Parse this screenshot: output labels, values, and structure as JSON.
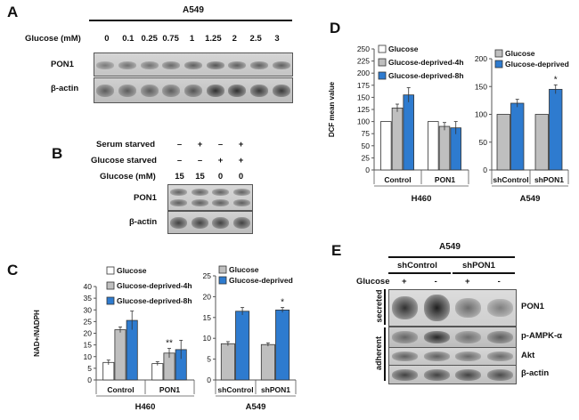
{
  "panels": {
    "a": "A",
    "b": "B",
    "c": "C",
    "d": "D",
    "e": "E"
  },
  "panel_a": {
    "cell_line": "A549",
    "glucose_label": "Glucose (mM)",
    "glucose_values": [
      "0",
      "0.1",
      "0.25",
      "0.75",
      "1",
      "1.25",
      "2",
      "2.5",
      "3"
    ],
    "rows": [
      "PON1",
      "β-actin"
    ]
  },
  "panel_b": {
    "conditions": [
      {
        "label": "Serum starved",
        "marks": [
          "–",
          "+",
          "–",
          "+"
        ]
      },
      {
        "label": "Glucose starved",
        "marks": [
          "–",
          "–",
          "+",
          "+"
        ]
      }
    ],
    "glucose_label": "Glucose (mM)",
    "glucose_values": [
      "15",
      "15",
      "0",
      "0"
    ],
    "rows": [
      "PON1",
      "β-actin"
    ]
  },
  "panel_e": {
    "cell_line": "A549",
    "groups": [
      "shControl",
      "shPON1"
    ],
    "glucose_label": "Glucose",
    "glucose_marks": [
      "+",
      "-",
      "+",
      "-"
    ],
    "side_labels": [
      "secreted",
      "adherent"
    ],
    "rows": [
      "PON1",
      "p-AMPK-α",
      "Akt",
      "β-actin"
    ]
  },
  "chart_data": [
    {
      "id": "C-H460",
      "type": "bar",
      "ylabel": "NAD+/NADPH",
      "ylim": [
        0,
        40
      ],
      "yticks": [
        0,
        5,
        10,
        15,
        20,
        25,
        30,
        35,
        40
      ],
      "categories": [
        "Control",
        "PON1"
      ],
      "group_label": "H460",
      "series": [
        {
          "name": "Glucose",
          "color": "#ffffff",
          "values": [
            7.5,
            7.0
          ],
          "errors": [
            1.0,
            0.8
          ]
        },
        {
          "name": "Glucose-deprived-4h",
          "color": "#bfbfbf",
          "values": [
            21.5,
            11.5
          ],
          "errors": [
            1.2,
            2.0
          ]
        },
        {
          "name": "Glucose-deprived-8h",
          "color": "#2e7bcf",
          "values": [
            25.5,
            13.0
          ],
          "errors": [
            4.0,
            4.0
          ]
        }
      ],
      "annotations": [
        {
          "category": "PON1",
          "series": "Glucose-deprived-4h",
          "text": "**"
        }
      ]
    },
    {
      "id": "C-A549",
      "type": "bar",
      "ylim": [
        0,
        25
      ],
      "yticks": [
        0,
        5,
        10,
        15,
        20,
        25
      ],
      "categories": [
        "shControl",
        "shPON1"
      ],
      "group_label": "A549",
      "series": [
        {
          "name": "Glucose",
          "color": "#bfbfbf",
          "values": [
            8.7,
            8.5
          ],
          "errors": [
            0.5,
            0.4
          ]
        },
        {
          "name": "Glucose-deprived",
          "color": "#2e7bcf",
          "values": [
            16.5,
            16.8
          ],
          "errors": [
            0.9,
            0.6
          ]
        }
      ],
      "annotations": [
        {
          "category": "shPON1",
          "series": "Glucose-deprived",
          "text": "*"
        }
      ]
    },
    {
      "id": "D-H460",
      "type": "bar",
      "ylabel": "DCF mean value",
      "ylim": [
        0,
        250
      ],
      "yticks": [
        0,
        25,
        50,
        75,
        100,
        125,
        150,
        175,
        200,
        225,
        250
      ],
      "categories": [
        "Control",
        "PON1"
      ],
      "group_label": "H460",
      "series": [
        {
          "name": "Glucose",
          "color": "#ffffff",
          "values": [
            100,
            100
          ],
          "errors": [
            0,
            0
          ]
        },
        {
          "name": "Glucose-deprived-4h",
          "color": "#bfbfbf",
          "values": [
            128,
            90
          ],
          "errors": [
            8,
            8
          ]
        },
        {
          "name": "Glucose-deprived-8h",
          "color": "#2e7bcf",
          "values": [
            155,
            87
          ],
          "errors": [
            15,
            13
          ]
        }
      ],
      "annotations": []
    },
    {
      "id": "D-A549",
      "type": "bar",
      "ylim": [
        0,
        200
      ],
      "yticks": [
        0,
        50,
        100,
        150,
        200
      ],
      "categories": [
        "shControl",
        "shPON1"
      ],
      "group_label": "A549",
      "series": [
        {
          "name": "Glucose",
          "color": "#bfbfbf",
          "values": [
            100,
            100
          ],
          "errors": [
            0,
            0
          ]
        },
        {
          "name": "Glucose-deprived",
          "color": "#2e7bcf",
          "values": [
            120,
            145
          ],
          "errors": [
            7,
            8
          ]
        }
      ],
      "annotations": [
        {
          "category": "shPON1",
          "series": "Glucose-deprived",
          "text": "*"
        }
      ]
    }
  ]
}
